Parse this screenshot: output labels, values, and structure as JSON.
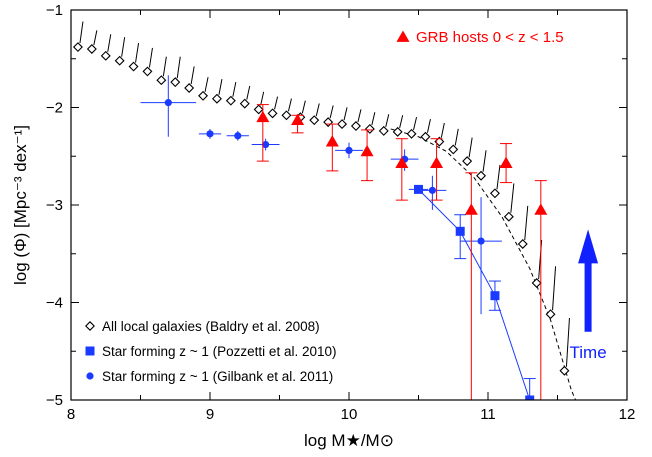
{
  "chart_data": {
    "type": "scatter",
    "xlabel": "log M★/M⊙",
    "ylabel": "log (Φ) [Mpc⁻³ dex⁻¹]",
    "xlim": [
      8,
      12
    ],
    "ylim": [
      -5,
      -1
    ],
    "x_ticks": [
      "8",
      "9",
      "10",
      "11",
      "12"
    ],
    "y_ticks": [
      "−5",
      "−4",
      "−3",
      "−2",
      "−1"
    ],
    "series": [
      {
        "name": "All local galaxies (Baldry et al. 2008)",
        "marker": "open-diamond",
        "color": "#000000",
        "points": [
          {
            "x": 8.05,
            "y": -1.38,
            "yerr_up": 0.22,
            "yerr_dn": 0.0
          },
          {
            "x": 8.15,
            "y": -1.4,
            "yerr_up": 0.15,
            "yerr_dn": 0.0
          },
          {
            "x": 8.25,
            "y": -1.47,
            "yerr_up": 0.18,
            "yerr_dn": 0.0
          },
          {
            "x": 8.35,
            "y": -1.52,
            "yerr_up": 0.2,
            "yerr_dn": 0.0
          },
          {
            "x": 8.45,
            "y": -1.58,
            "yerr_up": 0.2,
            "yerr_dn": 0.0
          },
          {
            "x": 8.55,
            "y": -1.63,
            "yerr_up": 0.2,
            "yerr_dn": 0.0
          },
          {
            "x": 8.65,
            "y": -1.72,
            "yerr_up": 0.2,
            "yerr_dn": 0.0
          },
          {
            "x": 8.75,
            "y": -1.74,
            "yerr_up": 0.22,
            "yerr_dn": 0.0
          },
          {
            "x": 8.85,
            "y": -1.8,
            "yerr_up": 0.18,
            "yerr_dn": 0.0
          },
          {
            "x": 8.95,
            "y": -1.88,
            "yerr_up": 0.15,
            "yerr_dn": 0.0
          },
          {
            "x": 9.05,
            "y": -1.91,
            "yerr_up": 0.16,
            "yerr_dn": 0.0
          },
          {
            "x": 9.15,
            "y": -1.93,
            "yerr_up": 0.15,
            "yerr_dn": 0.0
          },
          {
            "x": 9.25,
            "y": -1.96,
            "yerr_up": 0.14,
            "yerr_dn": 0.0
          },
          {
            "x": 9.35,
            "y": -2.02,
            "yerr_up": 0.14,
            "yerr_dn": 0.0
          },
          {
            "x": 9.45,
            "y": -2.06,
            "yerr_up": 0.13,
            "yerr_dn": 0.0
          },
          {
            "x": 9.55,
            "y": -2.08,
            "yerr_up": 0.13,
            "yerr_dn": 0.0
          },
          {
            "x": 9.65,
            "y": -2.1,
            "yerr_up": 0.13,
            "yerr_dn": 0.0
          },
          {
            "x": 9.75,
            "y": -2.13,
            "yerr_up": 0.13,
            "yerr_dn": 0.0
          },
          {
            "x": 9.85,
            "y": -2.15,
            "yerr_up": 0.13,
            "yerr_dn": 0.0
          },
          {
            "x": 9.95,
            "y": -2.17,
            "yerr_up": 0.13,
            "yerr_dn": 0.0
          },
          {
            "x": 10.05,
            "y": -2.19,
            "yerr_up": 0.13,
            "yerr_dn": 0.0
          },
          {
            "x": 10.15,
            "y": -2.22,
            "yerr_up": 0.13,
            "yerr_dn": 0.0
          },
          {
            "x": 10.25,
            "y": -2.24,
            "yerr_up": 0.13,
            "yerr_dn": 0.0
          },
          {
            "x": 10.35,
            "y": -2.25,
            "yerr_up": 0.13,
            "yerr_dn": 0.0
          },
          {
            "x": 10.45,
            "y": -2.27,
            "yerr_up": 0.13,
            "yerr_dn": 0.0
          },
          {
            "x": 10.55,
            "y": -2.3,
            "yerr_up": 0.14,
            "yerr_dn": 0.0
          },
          {
            "x": 10.65,
            "y": -2.35,
            "yerr_up": 0.15,
            "yerr_dn": 0.0
          },
          {
            "x": 10.75,
            "y": -2.43,
            "yerr_up": 0.17,
            "yerr_dn": 0.0
          },
          {
            "x": 10.85,
            "y": -2.55,
            "yerr_up": 0.2,
            "yerr_dn": 0.0
          },
          {
            "x": 10.95,
            "y": -2.7,
            "yerr_up": 0.22,
            "yerr_dn": 0.0
          },
          {
            "x": 11.05,
            "y": -2.88,
            "yerr_up": 0.25,
            "yerr_dn": 0.0
          },
          {
            "x": 11.15,
            "y": -3.12,
            "yerr_up": 0.3,
            "yerr_dn": 0.0
          },
          {
            "x": 11.25,
            "y": -3.4,
            "yerr_up": 0.35,
            "yerr_dn": 0.0
          },
          {
            "x": 11.35,
            "y": -3.8,
            "yerr_up": 0.4,
            "yerr_dn": 0.0
          },
          {
            "x": 11.45,
            "y": -4.12,
            "yerr_up": 0.45,
            "yerr_dn": 0.0
          },
          {
            "x": 11.55,
            "y": -4.7,
            "yerr_up": 0.5,
            "yerr_dn": 0.0
          }
        ],
        "fit_curve": {
          "style": "dashed",
          "points": [
            [
              10.3,
              -2.22
            ],
            [
              10.5,
              -2.3
            ],
            [
              10.7,
              -2.45
            ],
            [
              10.9,
              -2.72
            ],
            [
              11.1,
              -3.12
            ],
            [
              11.3,
              -3.65
            ],
            [
              11.45,
              -4.18
            ],
            [
              11.6,
              -4.9
            ],
            [
              11.63,
              -5.0
            ]
          ]
        }
      },
      {
        "name": "Star forming z ~ 1 (Pozzetti et al. 2010)",
        "marker": "filled-square",
        "color": "#1a3bff",
        "connected": true,
        "points": [
          {
            "x": 10.5,
            "y": -2.84,
            "xerr": 0.07,
            "yerr_up": 0.0,
            "yerr_dn": 0.0
          },
          {
            "x": 10.8,
            "y": -3.27,
            "xerr": 0.0,
            "yerr_up": 0.17,
            "yerr_dn": 0.28
          },
          {
            "x": 11.05,
            "y": -3.93,
            "xerr": 0.0,
            "yerr_up": 0.15,
            "yerr_dn": 0.15
          },
          {
            "x": 11.3,
            "y": -5.0,
            "xerr": 0.0,
            "yerr_up": 0.22,
            "yerr_dn": 0.0
          }
        ]
      },
      {
        "name": "Star forming z ~ 1 (Gilbank et al. 2011)",
        "marker": "filled-circle",
        "color": "#1a3bff",
        "points": [
          {
            "x": 8.7,
            "y": -1.95,
            "xerr": 0.2,
            "yerr_up": 0.28,
            "yerr_dn": 0.35
          },
          {
            "x": 9.0,
            "y": -2.27,
            "xerr": 0.08,
            "yerr_up": 0.05,
            "yerr_dn": 0.05
          },
          {
            "x": 9.2,
            "y": -2.29,
            "xerr": 0.08,
            "yerr_up": 0.05,
            "yerr_dn": 0.05
          },
          {
            "x": 9.4,
            "y": -2.38,
            "xerr": 0.1,
            "yerr_up": 0.06,
            "yerr_dn": 0.06
          },
          {
            "x": 10.0,
            "y": -2.44,
            "xerr": 0.1,
            "yerr_up": 0.08,
            "yerr_dn": 0.08
          },
          {
            "x": 10.4,
            "y": -2.53,
            "xerr": 0.1,
            "yerr_up": 0.1,
            "yerr_dn": 0.12
          },
          {
            "x": 10.6,
            "y": -2.85,
            "xerr": 0.1,
            "yerr_up": 0.15,
            "yerr_dn": 0.2
          },
          {
            "x": 10.95,
            "y": -3.37,
            "xerr": 0.15,
            "yerr_up": 0.45,
            "yerr_dn": 0.75
          }
        ]
      },
      {
        "name": "GRB hosts 0 < z < 1.5",
        "marker": "filled-triangle",
        "color": "#ff0000",
        "points": [
          {
            "x": 9.38,
            "y": -2.1,
            "yerr_up": 0.13,
            "yerr_dn": 0.45
          },
          {
            "x": 9.63,
            "y": -2.13,
            "yerr_up": 0.05,
            "yerr_dn": 0.13
          },
          {
            "x": 9.88,
            "y": -2.35,
            "yerr_up": 0.18,
            "yerr_dn": 0.3
          },
          {
            "x": 10.13,
            "y": -2.45,
            "yerr_up": 0.22,
            "yerr_dn": 0.3
          },
          {
            "x": 10.38,
            "y": -2.57,
            "yerr_up": 0.25,
            "yerr_dn": 0.38
          },
          {
            "x": 10.63,
            "y": -2.57,
            "yerr_up": 0.25,
            "yerr_dn": 0.38
          },
          {
            "x": 10.88,
            "y": -3.05,
            "yerr_up": 0.38,
            "yerr_dn": 1.95
          },
          {
            "x": 11.13,
            "y": -2.57,
            "yerr_up": 0.2,
            "yerr_dn": 0.2
          },
          {
            "x": 11.38,
            "y": -3.05,
            "yerr_up": 0.3,
            "yerr_dn": 1.95
          }
        ]
      }
    ],
    "legend": {
      "placement": "bottom-left",
      "entries": [
        "All local galaxies (Baldry et al. 2008)",
        "Star forming z ~ 1 (Pozzetti et al. 2010)",
        "Star forming z ~ 1 (Gilbank et al. 2011)"
      ],
      "top_right_entry": "GRB hosts 0 < z < 1.5"
    },
    "annotation": {
      "text": "Time",
      "color": "#1020ff",
      "arrow_from_y": -4.3,
      "arrow_to_y": -3.25,
      "x": 11.72
    }
  }
}
